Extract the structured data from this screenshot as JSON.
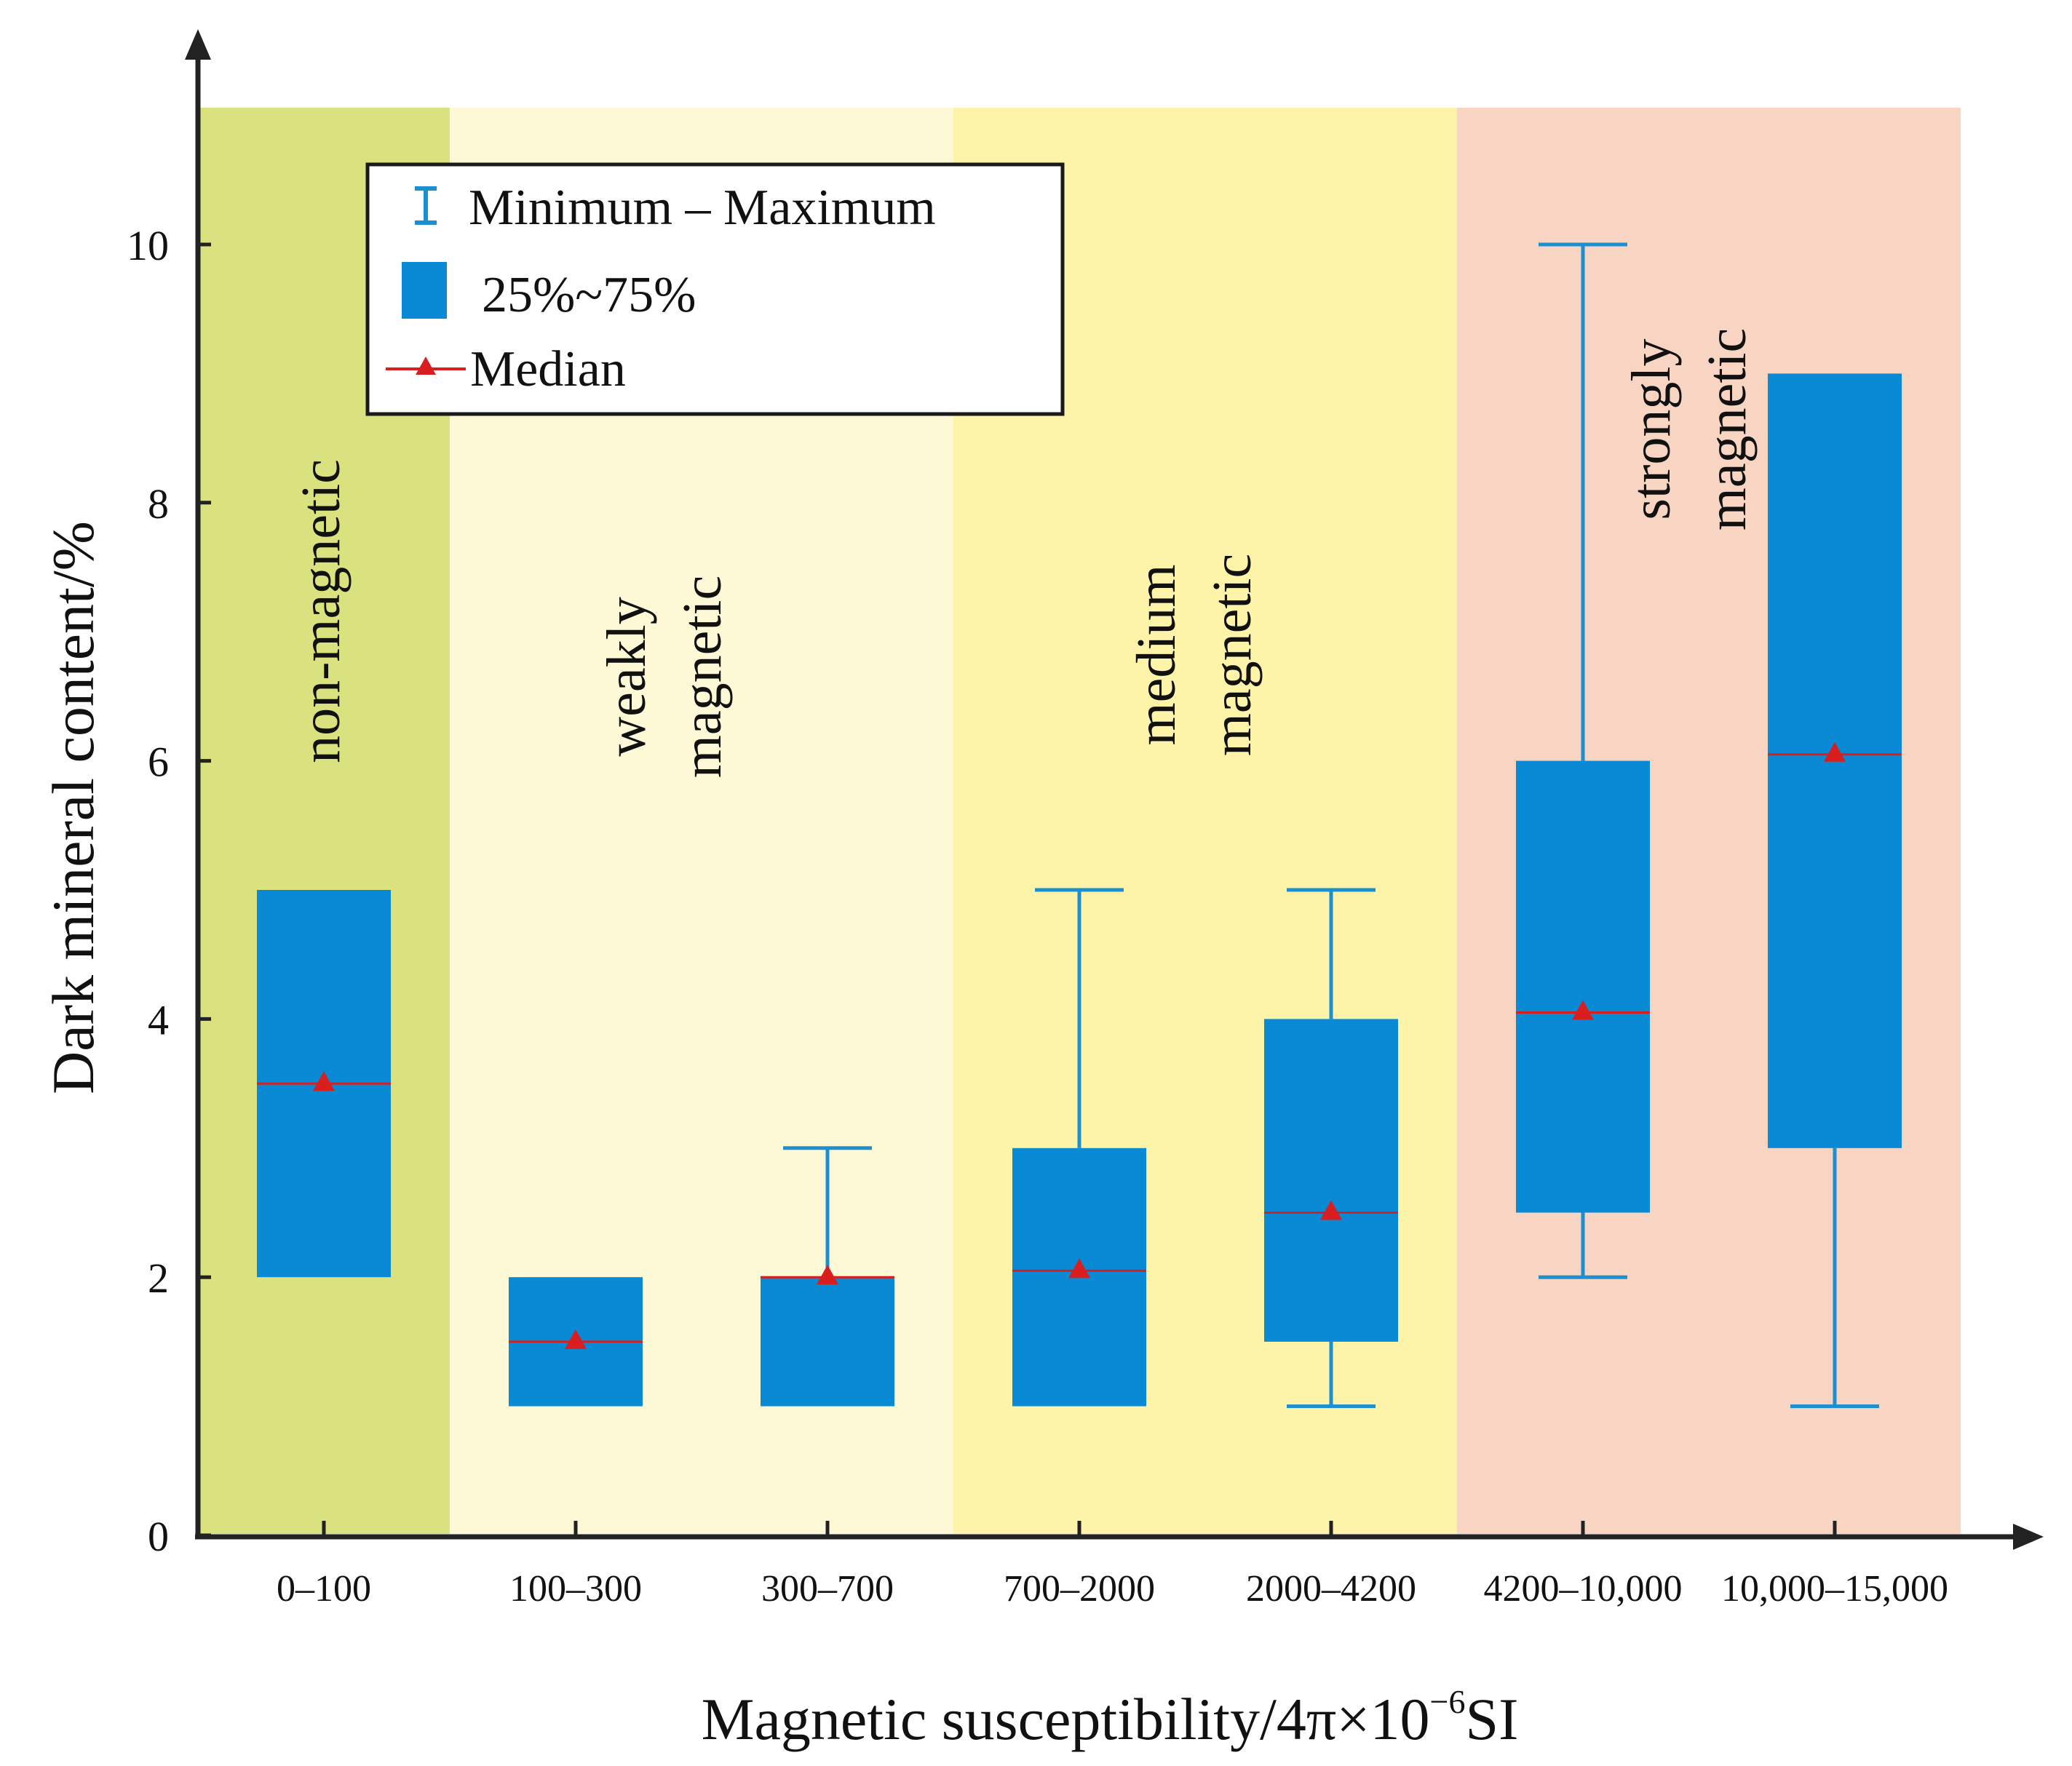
{
  "chart_data": {
    "type": "boxplot",
    "xlabel": "Magnetic susceptibility/4π×10",
    "xlabel_exp": "−6",
    "xlabel_unit": "SI",
    "ylabel": "Dark mineral content/%",
    "ylim": [
      0,
      11
    ],
    "yticks": [
      "0",
      "2",
      "4",
      "6",
      "8",
      "10"
    ],
    "ytick_values": [
      0,
      2,
      4,
      6,
      8,
      10
    ],
    "categories": [
      "0–100",
      "100–300",
      "300–700",
      "700–2000",
      "2000–4200",
      "4200–10,000",
      "10,000–15,000"
    ],
    "boxes": [
      {
        "category": "0–100",
        "min": null,
        "q1": 2.0,
        "median": 3.5,
        "q3": 5.0,
        "max": null
      },
      {
        "category": "100–300",
        "min": null,
        "q1": 1.0,
        "median": 1.5,
        "q3": 2.0,
        "max": null
      },
      {
        "category": "300–700",
        "min": null,
        "q1": 1.0,
        "median": 2.0,
        "q3": 2.0,
        "max": 3.0
      },
      {
        "category": "700–2000",
        "min": null,
        "q1": 1.0,
        "median": 2.05,
        "q3": 3.0,
        "max": 5.0
      },
      {
        "category": "2000–4200",
        "min": 1.0,
        "q1": 1.5,
        "median": 2.5,
        "q3": 4.0,
        "max": 5.0
      },
      {
        "category": "4200–10,000",
        "min": 2.0,
        "q1": 2.5,
        "median": 4.05,
        "q3": 6.0,
        "max": 10.0
      },
      {
        "category": "10,000–15,000",
        "min": 1.0,
        "q1": 3.0,
        "median": 6.05,
        "q3": 9.0,
        "max": 9.0
      }
    ],
    "bands": [
      {
        "lines": [
          "non-magnetic"
        ],
        "from": 0,
        "to": 1,
        "color": "#d9e27e"
      },
      {
        "lines": [
          "weakly",
          "magnetic"
        ],
        "from": 1,
        "to": 3,
        "color": "#fdf9d6"
      },
      {
        "lines": [
          "medium",
          "magnetic"
        ],
        "from": 3,
        "to": 5,
        "color": "#fdf4a9"
      },
      {
        "lines": [
          "strongly",
          "magnetic"
        ],
        "from": 5,
        "to": 7,
        "color": "#f7d5c2"
      }
    ],
    "legend": {
      "items": [
        {
          "kind": "whisker",
          "label": "Minimum – Maximum"
        },
        {
          "kind": "box",
          "label": "25%~75%"
        },
        {
          "kind": "median",
          "label": "Median"
        }
      ]
    },
    "colors": {
      "box": "#0a8ad4",
      "whisker": "#1b8fd0",
      "median": "#d81e1e",
      "axis": "#222222"
    }
  }
}
